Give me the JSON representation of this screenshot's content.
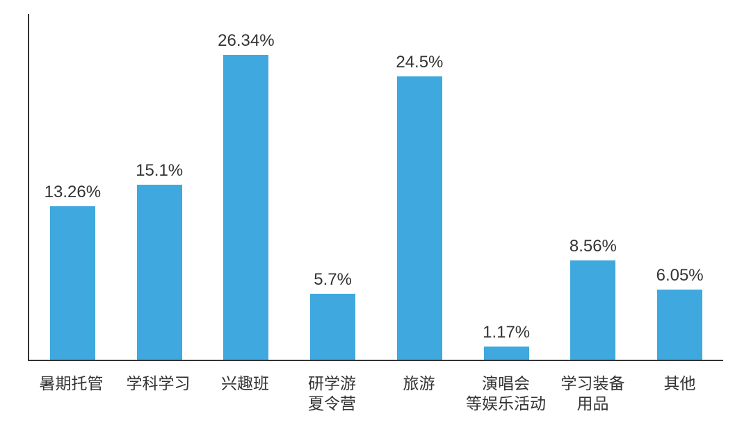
{
  "chart": {
    "type": "bar",
    "background_color": "#ffffff",
    "axis_color": "#333333",
    "bar_color": "#3fa8de",
    "value_label_color": "#333333",
    "value_label_fontsize": 24,
    "x_label_color": "#333333",
    "x_label_fontsize": 23,
    "ylim_max": 30,
    "bar_width_ratio": 0.52,
    "categories": [
      "暑期托管",
      "学科学习",
      "兴趣班",
      "研学游\n夏令营",
      "旅游",
      "演唱会\n等娱乐活动",
      "学习装备\n用品",
      "其他"
    ],
    "values": [
      13.26,
      15.1,
      26.34,
      5.7,
      24.5,
      1.17,
      8.56,
      6.05
    ],
    "value_labels": [
      "13.26%",
      "15.1%",
      "26.34%",
      "5.7%",
      "24.5%",
      "1.17%",
      "8.56%",
      "6.05%"
    ]
  }
}
